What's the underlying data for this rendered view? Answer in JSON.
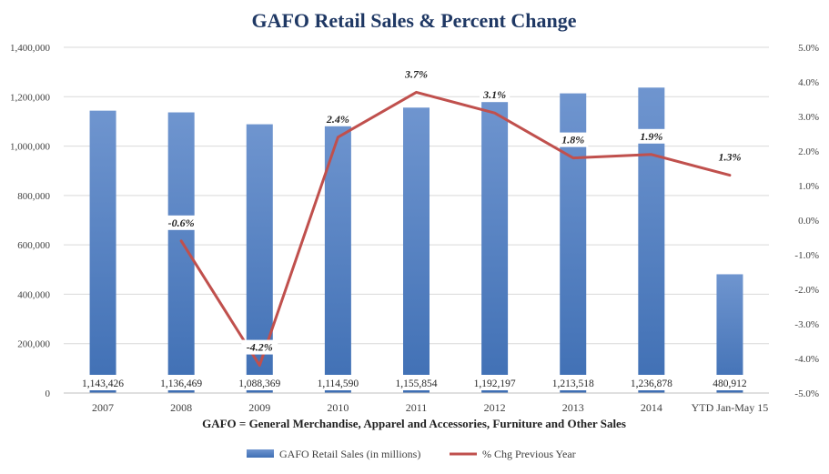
{
  "chart_data": {
    "type": "bar",
    "title": "GAFO Retail Sales & Percent Change",
    "subtitle": "GAFO = General Merchandise, Apparel and Accessories, Furniture and Other Sales",
    "categories": [
      "2007",
      "2008",
      "2009",
      "2010",
      "2011",
      "2012",
      "2013",
      "2014",
      "YTD Jan-May 15"
    ],
    "series": [
      {
        "name": "GAFO Retail Sales (in millions)",
        "type": "bar",
        "axis": "left",
        "color": "#4e7fc4",
        "values": [
          1143426,
          1136469,
          1088369,
          1114590,
          1155854,
          1192197,
          1213518,
          1236878,
          480912
        ],
        "labels": [
          "1,143,426",
          "1,136,469",
          "1,088,369",
          "1,114,590",
          "1,155,854",
          "1,192,197",
          "1,213,518",
          "1,236,878",
          "480,912"
        ]
      },
      {
        "name": "% Chg Previous Year",
        "type": "line",
        "axis": "right",
        "color": "#c0504d",
        "values": [
          null,
          -0.6,
          -4.2,
          2.4,
          3.7,
          3.1,
          1.8,
          1.9,
          1.3
        ],
        "labels": [
          "",
          "-0.6%",
          "-4.2%",
          "2.4%",
          "3.7%",
          "3.1%",
          "1.8%",
          "1.9%",
          "1.3%"
        ]
      }
    ],
    "y_left": {
      "min": 0,
      "max": 1400000,
      "step": 200000,
      "ticks": [
        "0",
        "200,000",
        "400,000",
        "600,000",
        "800,000",
        "1,000,000",
        "1,200,000",
        "1,400,000"
      ]
    },
    "y_right": {
      "min": -5,
      "max": 5,
      "step": 1,
      "ticks": [
        "-5.0%",
        "-4.0%",
        "-3.0%",
        "-2.0%",
        "-1.0%",
        "0.0%",
        "1.0%",
        "2.0%",
        "3.0%",
        "4.0%",
        "5.0%"
      ]
    },
    "grid": true,
    "legend": "bottom"
  }
}
